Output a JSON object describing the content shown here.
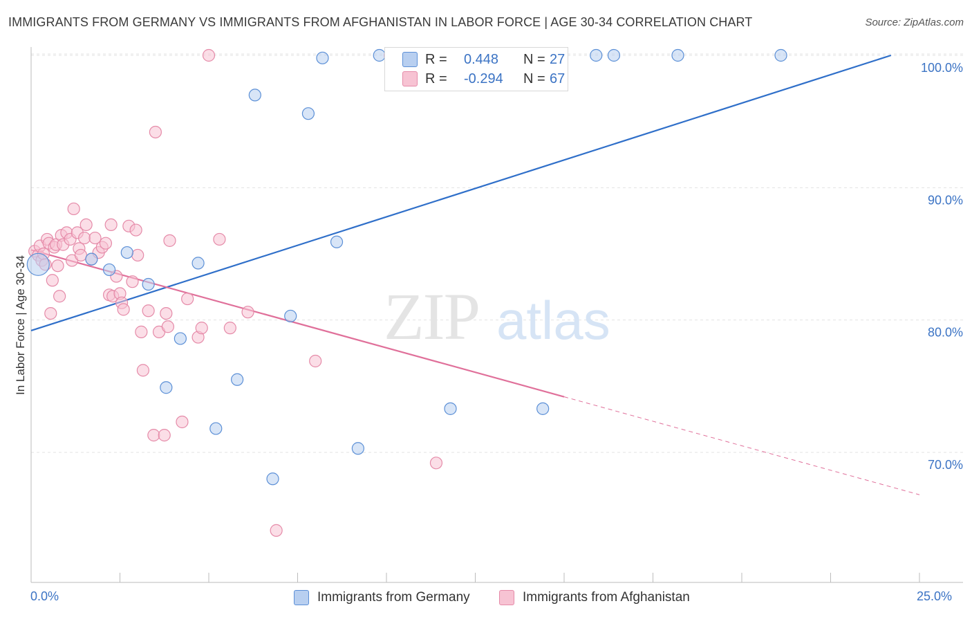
{
  "title": "IMMIGRANTS FROM GERMANY VS IMMIGRANTS FROM AFGHANISTAN IN LABOR FORCE | AGE 30-34 CORRELATION CHART",
  "source": "Source: ZipAtlas.com",
  "watermark": {
    "zip": "ZIP",
    "atlas": "atlas"
  },
  "colors": {
    "germany_fill": "#b8cff0",
    "germany_stroke": "#5b8fd6",
    "germany_line": "#2f6fc9",
    "afghanistan_fill": "#f7c3d3",
    "afghanistan_stroke": "#e58aa8",
    "afghanistan_line": "#e0709a",
    "axis_text": "#3b73c4",
    "grid": "#e3e3e3"
  },
  "legend": {
    "rows": [
      {
        "label": "R =",
        "r": "0.448",
        "n_label": "N =",
        "n": "27",
        "series": "germany"
      },
      {
        "label": "R =",
        "r": "-0.294",
        "n_label": "N =",
        "n": "67",
        "series": "afghanistan"
      }
    ]
  },
  "bottom_legend": [
    "Immigrants from Germany",
    "Immigrants from Afghanistan"
  ],
  "chart_data": {
    "type": "scatter",
    "title": "IMMIGRANTS FROM GERMANY VS IMMIGRANTS FROM AFGHANISTAN IN LABOR FORCE | AGE 30-34 CORRELATION CHART",
    "xlabel": "",
    "ylabel": "In Labor Force | Age 30-34",
    "xlim": [
      0,
      25
    ],
    "ylim": [
      60,
      103
    ],
    "x_tick_labels": [
      "0.0%",
      "25.0%"
    ],
    "y_ticks": [
      70,
      80,
      90,
      100
    ],
    "y_tick_labels": [
      "70.0%",
      "80.0%",
      "90.0%",
      "100.0%"
    ],
    "grid": true,
    "legend_position": "top-center",
    "series": [
      {
        "name": "Immigrants from Germany",
        "R": 0.448,
        "N": 27,
        "trend": {
          "x": [
            0,
            24.2
          ],
          "y": [
            79.2,
            100.0
          ]
        },
        "points": [
          {
            "x": 0.2,
            "y": 84.2,
            "big": true
          },
          {
            "x": 1.7,
            "y": 84.6
          },
          {
            "x": 2.2,
            "y": 83.8
          },
          {
            "x": 2.7,
            "y": 85.1
          },
          {
            "x": 3.3,
            "y": 82.7
          },
          {
            "x": 4.2,
            "y": 78.6
          },
          {
            "x": 4.7,
            "y": 84.3
          },
          {
            "x": 3.8,
            "y": 74.9
          },
          {
            "x": 5.2,
            "y": 71.8
          },
          {
            "x": 5.8,
            "y": 75.5
          },
          {
            "x": 6.3,
            "y": 97.0
          },
          {
            "x": 6.8,
            "y": 68.0
          },
          {
            "x": 7.3,
            "y": 80.3
          },
          {
            "x": 7.8,
            "y": 95.6
          },
          {
            "x": 8.2,
            "y": 99.8
          },
          {
            "x": 8.6,
            "y": 85.9
          },
          {
            "x": 9.2,
            "y": 70.3
          },
          {
            "x": 9.8,
            "y": 100.0
          },
          {
            "x": 11.8,
            "y": 73.3
          },
          {
            "x": 14.4,
            "y": 73.3
          },
          {
            "x": 15.9,
            "y": 100.0
          },
          {
            "x": 16.4,
            "y": 100.0
          },
          {
            "x": 18.2,
            "y": 100.0
          },
          {
            "x": 21.1,
            "y": 100.0
          }
        ]
      },
      {
        "name": "Immigrants from Afghanistan",
        "R": -0.294,
        "N": 67,
        "trend": {
          "x": [
            0,
            15
          ],
          "y": [
            85.3,
            74.2
          ]
        },
        "trend_dashed": {
          "x": [
            15,
            25
          ],
          "y": [
            74.2,
            66.8
          ]
        },
        "points": [
          {
            "x": 0.1,
            "y": 85.2
          },
          {
            "x": 0.2,
            "y": 84.9
          },
          {
            "x": 0.25,
            "y": 85.6
          },
          {
            "x": 0.3,
            "y": 84.5
          },
          {
            "x": 0.35,
            "y": 85.0
          },
          {
            "x": 0.4,
            "y": 84.2
          },
          {
            "x": 0.45,
            "y": 86.1
          },
          {
            "x": 0.5,
            "y": 85.8
          },
          {
            "x": 0.55,
            "y": 80.5
          },
          {
            "x": 0.6,
            "y": 83.0
          },
          {
            "x": 0.65,
            "y": 85.5
          },
          {
            "x": 0.7,
            "y": 85.7
          },
          {
            "x": 0.75,
            "y": 84.1
          },
          {
            "x": 0.8,
            "y": 81.8
          },
          {
            "x": 0.85,
            "y": 86.4
          },
          {
            "x": 0.9,
            "y": 85.7
          },
          {
            "x": 1.0,
            "y": 86.6
          },
          {
            "x": 1.1,
            "y": 86.1
          },
          {
            "x": 1.15,
            "y": 84.5
          },
          {
            "x": 1.2,
            "y": 88.4
          },
          {
            "x": 1.3,
            "y": 86.6
          },
          {
            "x": 1.35,
            "y": 85.4
          },
          {
            "x": 1.4,
            "y": 84.9
          },
          {
            "x": 1.5,
            "y": 86.2
          },
          {
            "x": 1.55,
            "y": 87.2
          },
          {
            "x": 1.7,
            "y": 84.6
          },
          {
            "x": 1.8,
            "y": 86.2
          },
          {
            "x": 1.9,
            "y": 85.1
          },
          {
            "x": 2.0,
            "y": 85.5
          },
          {
            "x": 2.1,
            "y": 85.8
          },
          {
            "x": 2.2,
            "y": 81.9
          },
          {
            "x": 2.3,
            "y": 81.8
          },
          {
            "x": 2.25,
            "y": 87.2
          },
          {
            "x": 2.4,
            "y": 83.3
          },
          {
            "x": 2.5,
            "y": 82.0
          },
          {
            "x": 2.55,
            "y": 81.3
          },
          {
            "x": 2.6,
            "y": 80.8
          },
          {
            "x": 2.75,
            "y": 87.1
          },
          {
            "x": 2.85,
            "y": 82.9
          },
          {
            "x": 2.95,
            "y": 86.8
          },
          {
            "x": 3.0,
            "y": 84.9
          },
          {
            "x": 3.1,
            "y": 79.1
          },
          {
            "x": 3.15,
            "y": 76.2
          },
          {
            "x": 3.3,
            "y": 80.7
          },
          {
            "x": 3.45,
            "y": 71.3
          },
          {
            "x": 3.5,
            "y": 94.2
          },
          {
            "x": 3.6,
            "y": 79.1
          },
          {
            "x": 3.75,
            "y": 71.3
          },
          {
            "x": 3.8,
            "y": 80.5
          },
          {
            "x": 3.85,
            "y": 79.5
          },
          {
            "x": 3.9,
            "y": 86.0
          },
          {
            "x": 4.25,
            "y": 72.3
          },
          {
            "x": 4.4,
            "y": 81.6
          },
          {
            "x": 4.7,
            "y": 78.7
          },
          {
            "x": 4.8,
            "y": 79.4
          },
          {
            "x": 5.0,
            "y": 100.0
          },
          {
            "x": 5.3,
            "y": 86.1
          },
          {
            "x": 5.6,
            "y": 79.4
          },
          {
            "x": 6.1,
            "y": 80.6
          },
          {
            "x": 6.9,
            "y": 64.1
          },
          {
            "x": 8.0,
            "y": 76.9
          },
          {
            "x": 10.1,
            "y": 100.0
          },
          {
            "x": 11.4,
            "y": 69.2
          }
        ]
      }
    ]
  }
}
